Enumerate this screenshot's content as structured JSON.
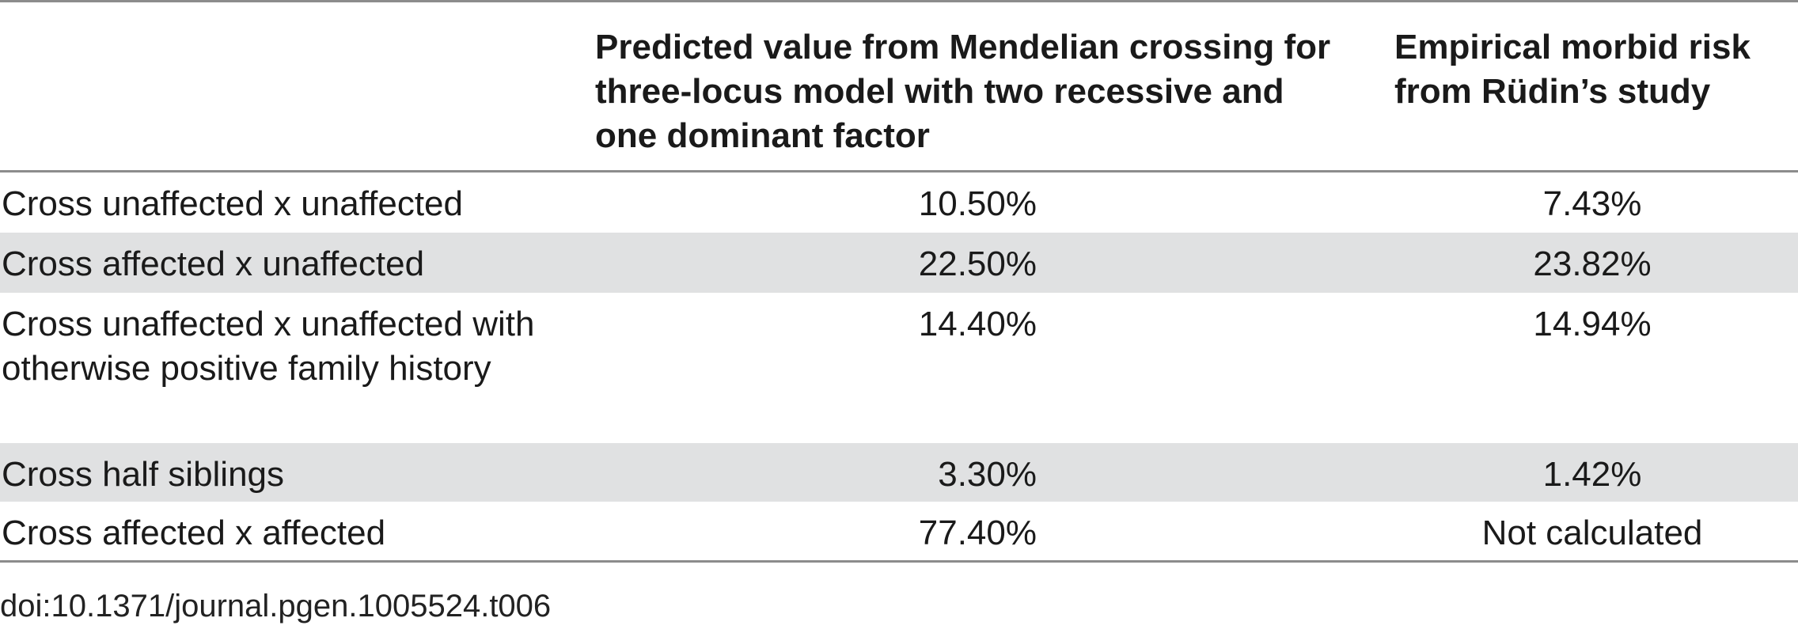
{
  "table": {
    "headers": [
      "",
      "Predicted value from Mendelian crossing for three-locus model with two recessive and one dominant factor",
      "Empirical morbid risk from Rüdin’s study"
    ],
    "rows": [
      {
        "label": "Cross unaffected x unaffected",
        "predicted": "10.50%",
        "empirical": "7.43%"
      },
      {
        "label": "Cross affected x unaffected",
        "predicted": "22.50%",
        "empirical": "23.82%"
      },
      {
        "label": "Cross unaffected x unaffected with otherwise positive family history",
        "predicted": "14.40%",
        "empirical": "14.94%"
      },
      {
        "label": "Cross half siblings",
        "predicted": "3.30%",
        "empirical": "1.42%"
      },
      {
        "label": "Cross affected x affected",
        "predicted": "77.40%",
        "empirical": "Not calculated"
      }
    ]
  },
  "footer": {
    "doi": "doi:10.1371/journal.pgen.1005524.t006"
  }
}
